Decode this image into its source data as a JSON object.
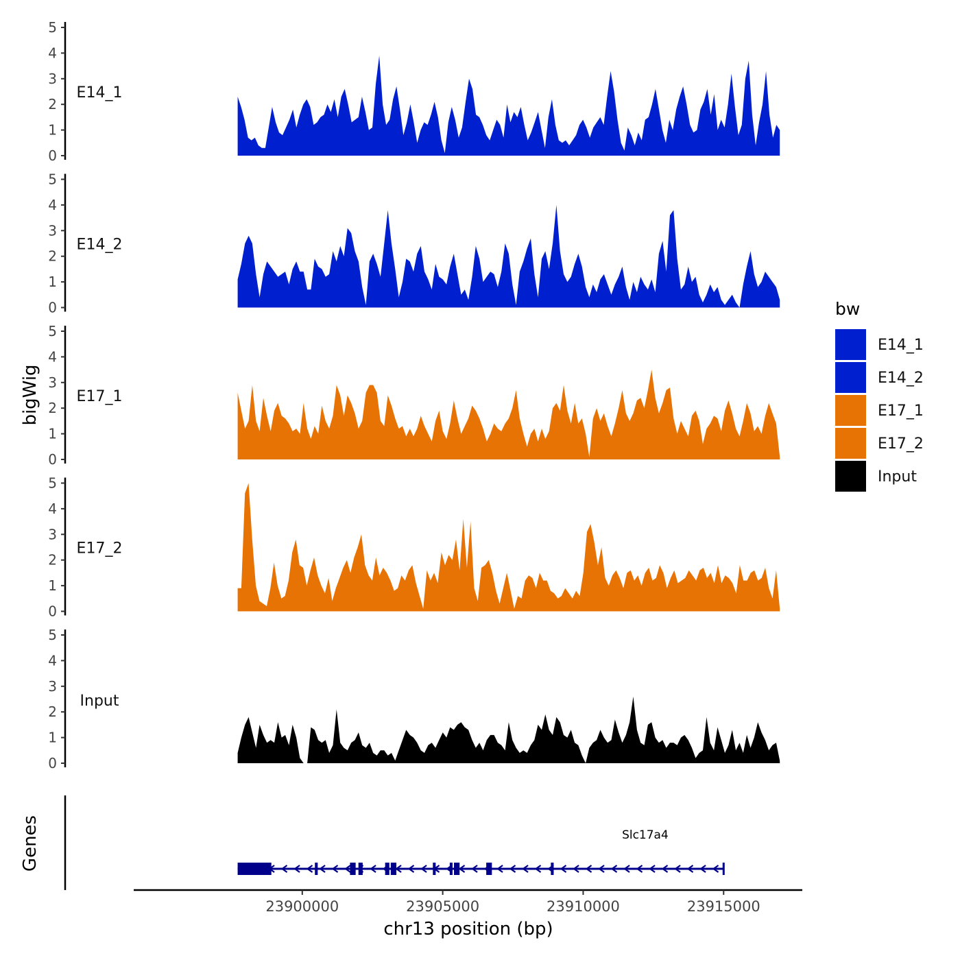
{
  "chart_data": {
    "type": "area",
    "ylabel": "bigWig",
    "genes_label": "Genes",
    "xlabel": "chr13 position (bp)",
    "x_range": [
      23897700,
      23917000
    ],
    "x_axis_limits": [
      23894000,
      23917800
    ],
    "x_ticks": [
      23900000,
      23905000,
      23910000,
      23915000
    ],
    "x_tick_labels": [
      "23900000",
      "23905000",
      "23910000",
      "23915000"
    ],
    "y_range": [
      0,
      5
    ],
    "y_ticks": [
      0,
      1,
      2,
      3,
      4,
      5
    ],
    "y_tick_labels": [
      "0",
      "1",
      "2",
      "3",
      "4",
      "5"
    ],
    "legend": {
      "title": "bw",
      "position": "right",
      "entries": [
        {
          "label": "E14_1",
          "color": "#0020D0"
        },
        {
          "label": "E14_2",
          "color": "#0020D0"
        },
        {
          "label": "E17_1",
          "color": "#E87305"
        },
        {
          "label": "E17_2",
          "color": "#E87305"
        },
        {
          "label": "Input",
          "color": "#000000"
        }
      ]
    },
    "series": [
      {
        "name": "E14_1",
        "color": "#0020D0",
        "values": [
          2.3,
          1.9,
          1.4,
          0.7,
          0.6,
          0.7,
          0.4,
          0.3,
          0.3,
          1.1,
          1.9,
          1.3,
          0.9,
          0.8,
          1.1,
          1.4,
          1.8,
          1.1,
          1.6,
          2.0,
          2.2,
          1.9,
          1.2,
          1.3,
          1.5,
          1.6,
          2.0,
          1.7,
          2.2,
          1.5,
          2.3,
          2.6,
          2.0,
          1.3,
          1.4,
          1.5,
          2.3,
          1.7,
          1.0,
          1.1,
          2.8,
          3.9,
          2.0,
          1.2,
          1.4,
          2.2,
          2.7,
          1.8,
          0.8,
          1.3,
          2.0,
          1.3,
          0.5,
          1.0,
          1.3,
          1.2,
          1.6,
          2.1,
          1.5,
          0.6,
          0.1,
          1.3,
          1.9,
          1.4,
          0.7,
          1.1,
          2.1,
          3.0,
          2.6,
          1.6,
          1.5,
          1.2,
          0.8,
          0.6,
          1.0,
          1.4,
          1.2,
          0.7,
          2.0,
          1.3,
          1.7,
          1.5,
          1.9,
          1.2,
          0.6,
          0.9,
          1.3,
          1.7,
          1.0,
          0.3,
          1.5,
          2.2,
          1.2,
          0.6,
          0.5,
          0.6,
          0.4,
          0.6,
          0.8,
          1.2,
          1.4,
          1.1,
          0.7,
          1.1,
          1.3,
          1.5,
          1.2,
          2.3,
          3.3,
          2.5,
          1.4,
          0.5,
          0.2,
          1.1,
          0.8,
          0.4,
          0.9,
          0.6,
          1.4,
          1.5,
          2.0,
          2.6,
          1.8,
          1.0,
          0.5,
          1.4,
          1.0,
          1.8,
          2.3,
          2.7,
          2.0,
          1.2,
          0.9,
          1.0,
          1.8,
          2.1,
          2.6,
          1.6,
          2.4,
          1.0,
          1.4,
          1.1,
          2.0,
          3.2,
          1.9,
          0.8,
          1.2,
          3.0,
          3.7,
          1.6,
          0.4,
          1.3,
          2.0,
          3.3,
          1.6,
          0.7,
          1.2,
          1.0
        ]
      },
      {
        "name": "E14_2",
        "color": "#0020D0",
        "values": [
          1.1,
          1.7,
          2.5,
          2.8,
          2.5,
          1.3,
          0.4,
          1.3,
          1.8,
          1.6,
          1.4,
          1.2,
          1.3,
          1.4,
          0.9,
          1.5,
          1.8,
          1.4,
          1.4,
          0.7,
          0.7,
          1.9,
          1.6,
          1.5,
          1.2,
          1.3,
          2.2,
          1.8,
          2.4,
          2.0,
          3.1,
          2.9,
          2.2,
          1.8,
          0.8,
          0.1,
          1.8,
          2.1,
          1.7,
          1.2,
          2.5,
          3.8,
          2.5,
          1.5,
          0.4,
          1.0,
          1.9,
          1.8,
          1.4,
          2.1,
          2.4,
          1.4,
          1.1,
          0.7,
          1.7,
          1.2,
          1.1,
          0.9,
          1.6,
          2.1,
          1.3,
          0.5,
          0.7,
          0.3,
          1.2,
          2.4,
          1.9,
          1.0,
          1.2,
          1.4,
          1.3,
          0.8,
          1.4,
          2.5,
          2.1,
          0.9,
          0.1,
          1.4,
          1.8,
          2.3,
          2.7,
          1.3,
          0.4,
          1.9,
          2.2,
          1.5,
          2.5,
          4.0,
          2.2,
          1.3,
          1.0,
          1.2,
          1.7,
          2.1,
          1.6,
          0.8,
          0.4,
          0.9,
          0.6,
          1.1,
          1.3,
          0.9,
          0.5,
          0.9,
          1.2,
          1.6,
          0.8,
          0.3,
          1.0,
          0.6,
          1.2,
          0.9,
          0.7,
          1.1,
          0.6,
          2.1,
          2.6,
          1.4,
          3.6,
          3.8,
          1.9,
          0.7,
          0.9,
          1.6,
          1.0,
          1.2,
          0.5,
          0.2,
          0.5,
          0.9,
          0.6,
          0.8,
          0.3,
          0.1,
          0.3,
          0.5,
          0.2,
          0.0,
          0.9,
          1.6,
          2.2,
          1.3,
          0.8,
          1.0,
          1.4,
          1.2,
          1.0,
          0.8,
          0.3
        ]
      },
      {
        "name": "E17_1",
        "color": "#E87305",
        "values": [
          2.6,
          1.9,
          1.2,
          1.5,
          2.9,
          1.5,
          1.1,
          2.4,
          1.7,
          1.1,
          1.9,
          2.2,
          1.7,
          1.6,
          1.4,
          1.1,
          1.2,
          1.0,
          2.2,
          1.2,
          0.8,
          1.3,
          1.0,
          2.1,
          1.5,
          1.2,
          1.7,
          2.9,
          2.5,
          1.7,
          2.5,
          2.2,
          1.8,
          1.2,
          1.5,
          2.6,
          2.9,
          2.9,
          2.6,
          1.5,
          1.3,
          2.5,
          2.1,
          1.6,
          1.2,
          1.3,
          0.9,
          1.2,
          0.9,
          1.2,
          1.7,
          1.3,
          1.0,
          0.7,
          1.5,
          1.9,
          1.1,
          0.8,
          1.4,
          2.3,
          1.6,
          1.0,
          1.3,
          1.6,
          2.1,
          1.9,
          1.6,
          1.2,
          0.7,
          1.0,
          1.4,
          1.2,
          1.1,
          1.4,
          1.6,
          2.0,
          2.7,
          1.6,
          1.0,
          0.5,
          1.0,
          1.2,
          0.7,
          1.2,
          0.8,
          1.1,
          2.0,
          2.2,
          1.9,
          2.9,
          1.9,
          1.4,
          2.2,
          1.4,
          1.6,
          1.0,
          0.1,
          1.6,
          2.0,
          1.5,
          1.8,
          1.3,
          0.9,
          1.4,
          2.0,
          2.7,
          1.8,
          1.5,
          1.8,
          2.3,
          2.4,
          2.0,
          2.7,
          3.5,
          2.4,
          1.8,
          2.2,
          2.7,
          2.8,
          1.6,
          1.0,
          1.5,
          1.2,
          0.9,
          1.7,
          1.9,
          1.5,
          0.6,
          1.2,
          1.4,
          1.7,
          1.6,
          1.1,
          1.9,
          2.3,
          1.8,
          1.2,
          0.9,
          1.5,
          2.2,
          1.8,
          1.1,
          1.3,
          1.0,
          1.7,
          2.2,
          1.8,
          1.4,
          0.1
        ]
      },
      {
        "name": "E17_2",
        "color": "#E87305",
        "values": [
          0.9,
          0.9,
          4.6,
          5.0,
          2.8,
          1.0,
          0.4,
          0.3,
          0.2,
          0.9,
          1.9,
          1.0,
          0.5,
          0.6,
          1.2,
          2.3,
          2.8,
          1.8,
          1.7,
          1.0,
          1.6,
          2.1,
          1.4,
          1.0,
          0.7,
          1.3,
          0.4,
          0.9,
          1.3,
          1.7,
          2.0,
          1.5,
          2.1,
          2.5,
          3.0,
          1.8,
          1.4,
          1.2,
          2.1,
          1.4,
          1.7,
          1.5,
          1.2,
          0.8,
          0.9,
          1.4,
          1.2,
          1.6,
          1.8,
          1.1,
          0.6,
          0.1,
          1.6,
          1.2,
          1.5,
          1.1,
          2.3,
          1.8,
          2.2,
          2.0,
          2.8,
          1.6,
          3.6,
          1.7,
          3.5,
          0.9,
          0.4,
          1.7,
          1.8,
          2.0,
          1.5,
          0.8,
          0.3,
          0.9,
          1.5,
          0.8,
          0.1,
          0.6,
          0.5,
          1.2,
          1.4,
          1.3,
          0.9,
          1.5,
          1.2,
          1.2,
          0.8,
          0.7,
          0.5,
          0.6,
          0.9,
          0.7,
          0.5,
          0.8,
          0.6,
          1.5,
          3.1,
          3.4,
          2.7,
          1.8,
          2.5,
          1.3,
          1.0,
          1.4,
          1.6,
          1.3,
          0.9,
          1.5,
          1.6,
          1.2,
          1.4,
          1.0,
          1.5,
          1.7,
          1.2,
          1.3,
          1.8,
          1.5,
          0.9,
          1.3,
          1.6,
          1.1,
          1.2,
          1.3,
          1.6,
          1.4,
          1.2,
          1.6,
          1.7,
          1.3,
          1.5,
          1.1,
          1.8,
          1.1,
          1.4,
          1.3,
          1.1,
          0.7,
          1.8,
          1.2,
          1.2,
          1.5,
          1.6,
          1.2,
          1.3,
          1.7,
          0.9,
          0.5,
          1.6,
          0.1
        ]
      },
      {
        "name": "Input",
        "color": "#000000",
        "values": [
          0.4,
          1.0,
          1.5,
          1.8,
          1.2,
          0.6,
          1.5,
          1.1,
          0.8,
          0.9,
          0.8,
          1.6,
          1.0,
          1.1,
          0.7,
          1.5,
          1.0,
          0.2,
          0.0,
          0.0,
          1.4,
          1.3,
          0.9,
          0.8,
          0.9,
          0.4,
          0.7,
          2.1,
          0.8,
          0.6,
          0.5,
          0.8,
          0.9,
          1.2,
          0.7,
          0.6,
          0.8,
          0.4,
          0.3,
          0.5,
          0.5,
          0.3,
          0.4,
          0.1,
          0.5,
          0.9,
          1.3,
          1.1,
          1.0,
          0.8,
          0.5,
          0.4,
          0.7,
          0.8,
          0.6,
          0.9,
          1.2,
          1.0,
          1.4,
          1.3,
          1.5,
          1.6,
          1.4,
          1.3,
          0.9,
          0.6,
          0.8,
          0.5,
          0.9,
          1.1,
          1.1,
          0.8,
          0.7,
          0.5,
          1.6,
          0.9,
          0.6,
          0.4,
          0.5,
          0.4,
          0.7,
          0.9,
          1.5,
          1.3,
          1.9,
          1.3,
          1.1,
          1.8,
          1.6,
          1.1,
          1.0,
          1.3,
          0.8,
          0.7,
          0.3,
          0.0,
          0.6,
          0.8,
          0.9,
          1.3,
          1.0,
          0.8,
          0.9,
          1.7,
          1.2,
          0.8,
          1.1,
          1.6,
          2.6,
          1.3,
          0.8,
          0.7,
          1.5,
          1.6,
          1.0,
          0.8,
          0.9,
          0.6,
          0.8,
          0.8,
          0.7,
          1.0,
          1.1,
          0.9,
          0.6,
          0.2,
          0.4,
          0.5,
          1.8,
          0.8,
          0.5,
          1.4,
          0.9,
          0.4,
          0.7,
          1.3,
          0.5,
          0.8,
          0.4,
          1.1,
          0.6,
          1.0,
          1.6,
          1.2,
          0.9,
          0.5,
          0.7,
          0.8,
          0.1
        ]
      }
    ],
    "gene_track": {
      "label": "Slc17a4",
      "color": "#00008B",
      "start": 23897700,
      "end": 23915000,
      "strand": "-",
      "exons": [
        {
          "start": 23897700,
          "end": 23898900
        },
        {
          "start": 23900450,
          "end": 23900550
        },
        {
          "start": 23901700,
          "end": 23901900
        },
        {
          "start": 23902000,
          "end": 23902150
        },
        {
          "start": 23902950,
          "end": 23903100
        },
        {
          "start": 23903150,
          "end": 23903350
        },
        {
          "start": 23904650,
          "end": 23904750
        },
        {
          "start": 23905250,
          "end": 23905350
        },
        {
          "start": 23905400,
          "end": 23905600
        },
        {
          "start": 23906550,
          "end": 23906750
        },
        {
          "start": 23908850,
          "end": 23908950
        }
      ]
    }
  }
}
